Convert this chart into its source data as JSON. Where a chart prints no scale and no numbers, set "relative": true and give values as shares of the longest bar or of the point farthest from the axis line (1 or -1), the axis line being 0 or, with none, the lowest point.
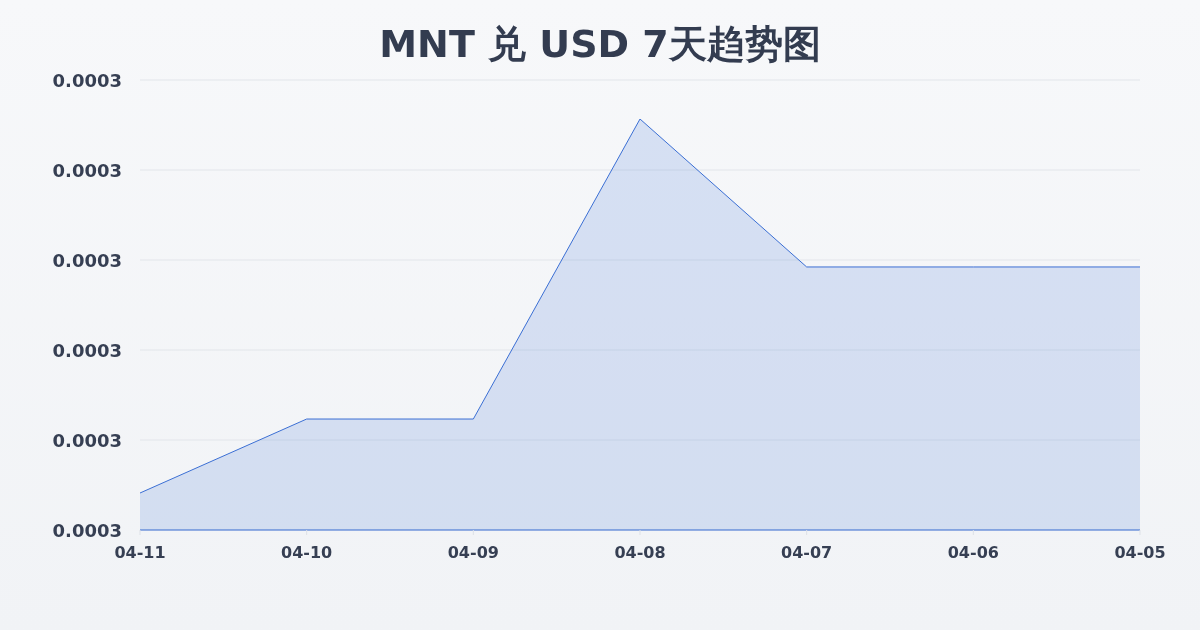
{
  "chart_data": {
    "type": "area",
    "title": "MNT 兑 USD 7天趋势图",
    "categories": [
      "04-11",
      "04-10",
      "04-09",
      "04-08",
      "04-07",
      "04-06",
      "04-05"
    ],
    "values": [
      0.09,
      0.27,
      0.27,
      1,
      0.64,
      0.64,
      0.64
    ],
    "color": "#3b6fd4",
    "relative": true,
    "annotations": [
      "0.0003",
      "0.0003",
      "0.0003",
      "0.0003",
      "0.0003",
      "0.0003"
    ],
    "grid": "y"
  }
}
